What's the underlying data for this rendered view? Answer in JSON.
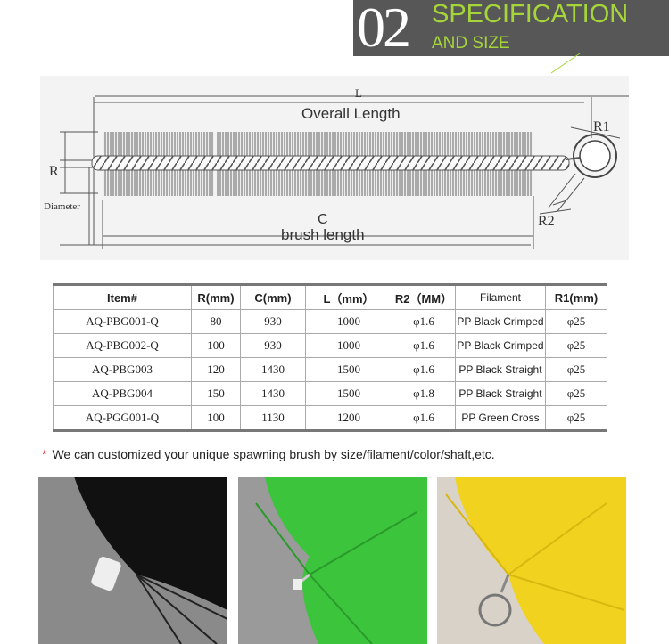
{
  "header": {
    "number": "02",
    "title": "SPECIFICATION",
    "subtitle": "AND SIZE"
  },
  "diagram": {
    "length_symbol": "L",
    "length_label": "Overall Length",
    "ring_symbol": "R1",
    "radius_symbol": "R",
    "diameter_label": "Diameter",
    "brush_symbol": "C",
    "brush_label": "brush length",
    "wire_symbol": "R2"
  },
  "table": {
    "columns": [
      "Item#",
      "R(mm)",
      "C(mm)",
      "L（mm）",
      "R2（MM）",
      "Filament",
      "R1(mm)"
    ],
    "rows": [
      [
        "AQ-PBG001-Q",
        "80",
        "930",
        "1000",
        "φ1.6",
        "PP Black Crimped",
        "φ25"
      ],
      [
        "AQ-PBG002-Q",
        "100",
        "930",
        "1000",
        "φ1.6",
        "PP Black Crimped",
        "φ25"
      ],
      [
        "AQ-PBG003",
        "120",
        "1430",
        "1500",
        "φ1.6",
        "PP Black Straight",
        "φ25"
      ],
      [
        "AQ-PBG004",
        "150",
        "1430",
        "1500",
        "φ1.8",
        "PP Black Straight",
        "φ25"
      ],
      [
        "AQ-PGG001-Q",
        "100",
        "1130",
        "1200",
        "φ1.6",
        "PP Green Cross",
        "φ25"
      ]
    ]
  },
  "note": {
    "mark": "*",
    "text": "We can customized your unique spawning brush by size/filament/color/shaft,etc."
  }
}
